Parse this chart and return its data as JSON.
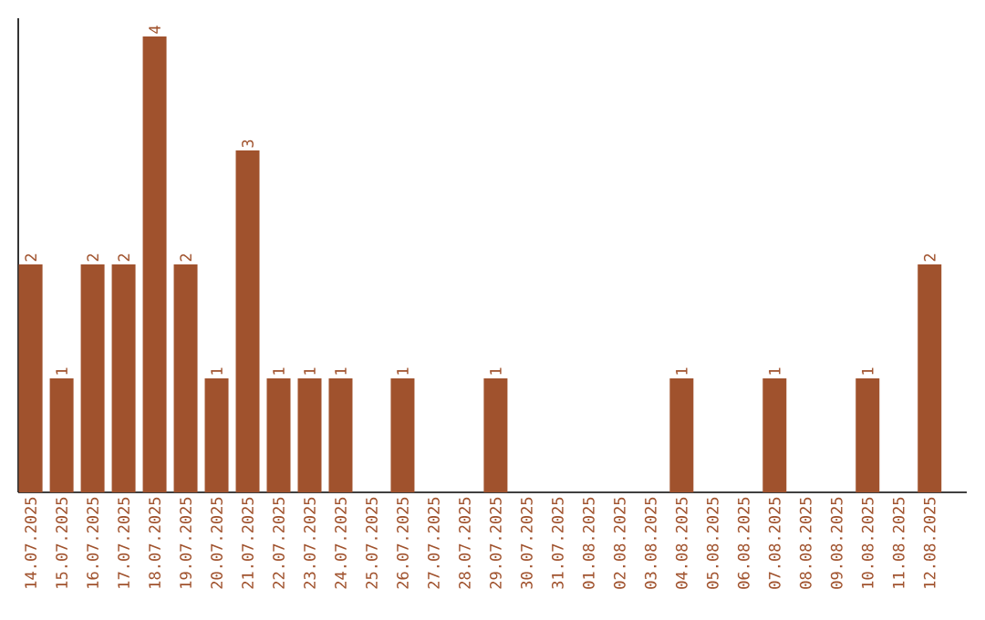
{
  "chart_data": {
    "type": "bar",
    "categories": [
      "14.07.2025",
      "15.07.2025",
      "16.07.2025",
      "17.07.2025",
      "18.07.2025",
      "19.07.2025",
      "20.07.2025",
      "21.07.2025",
      "22.07.2025",
      "23.07.2025",
      "24.07.2025",
      "25.07.2025",
      "26.07.2025",
      "27.07.2025",
      "28.07.2025",
      "29.07.2025",
      "30.07.2025",
      "31.07.2025",
      "01.08.2025",
      "02.08.2025",
      "03.08.2025",
      "04.08.2025",
      "05.08.2025",
      "06.08.2025",
      "07.08.2025",
      "08.08.2025",
      "09.08.2025",
      "10.08.2025",
      "11.08.2025",
      "12.08.2025"
    ],
    "values": [
      2,
      1,
      2,
      2,
      4,
      2,
      1,
      3,
      1,
      1,
      1,
      0,
      1,
      0,
      0,
      1,
      0,
      0,
      0,
      0,
      0,
      1,
      0,
      0,
      1,
      0,
      0,
      1,
      0,
      2
    ],
    "value_labels": [
      "2",
      "1",
      "2",
      "2",
      "4",
      "2",
      "1",
      "3",
      "1",
      "1",
      "1",
      null,
      "1",
      null,
      null,
      "1",
      null,
      null,
      null,
      null,
      null,
      "1",
      null,
      null,
      "1",
      null,
      null,
      "1",
      null,
      "2"
    ],
    "color": "#a0522d",
    "ylim": [
      0,
      4.16
    ],
    "tick_labels": "x"
  }
}
